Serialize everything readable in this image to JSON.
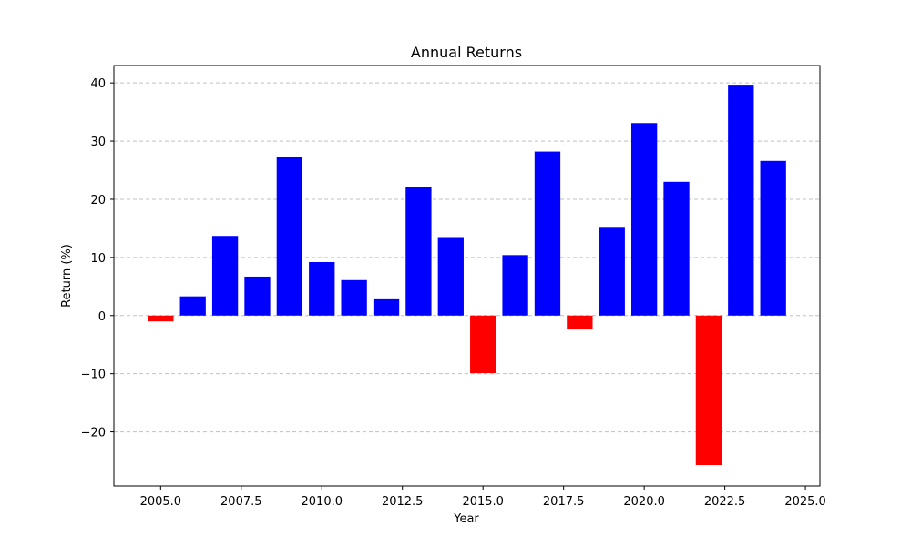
{
  "chart_data": {
    "type": "bar",
    "title": "Annual Returns",
    "xlabel": "Year",
    "ylabel": "Return (%)",
    "xlim": [
      2003.55,
      2025.45
    ],
    "ylim": [
      -29.3,
      43.0
    ],
    "grid": "y, dashed",
    "x_ticks": [
      2005.0,
      2007.5,
      2010.0,
      2012.5,
      2015.0,
      2017.5,
      2020.0,
      2022.5,
      2025.0
    ],
    "x_tick_labels": [
      "2005.0",
      "2007.5",
      "2010.0",
      "2012.5",
      "2015.0",
      "2017.5",
      "2020.0",
      "2022.5",
      "2025.0"
    ],
    "y_ticks": [
      -20,
      -10,
      0,
      10,
      20,
      30,
      40
    ],
    "y_tick_labels": [
      "−20",
      "−10",
      "0",
      "10",
      "20",
      "30",
      "40"
    ],
    "x": [
      2005,
      2006,
      2007,
      2008,
      2009,
      2010,
      2011,
      2012,
      2013,
      2014,
      2015,
      2016,
      2017,
      2018,
      2019,
      2020,
      2021,
      2022,
      2023,
      2024
    ],
    "values": [
      -1.0,
      3.3,
      13.7,
      6.7,
      27.2,
      9.2,
      6.1,
      2.8,
      22.1,
      13.5,
      -9.9,
      10.4,
      28.2,
      -2.4,
      15.1,
      33.1,
      23.0,
      -25.7,
      39.7,
      26.6
    ],
    "bar_width": 0.8,
    "colors": {
      "positive": "#0000ff",
      "negative": "#ff0000",
      "grid": "#c0c0c0",
      "axis": "#000000"
    }
  }
}
